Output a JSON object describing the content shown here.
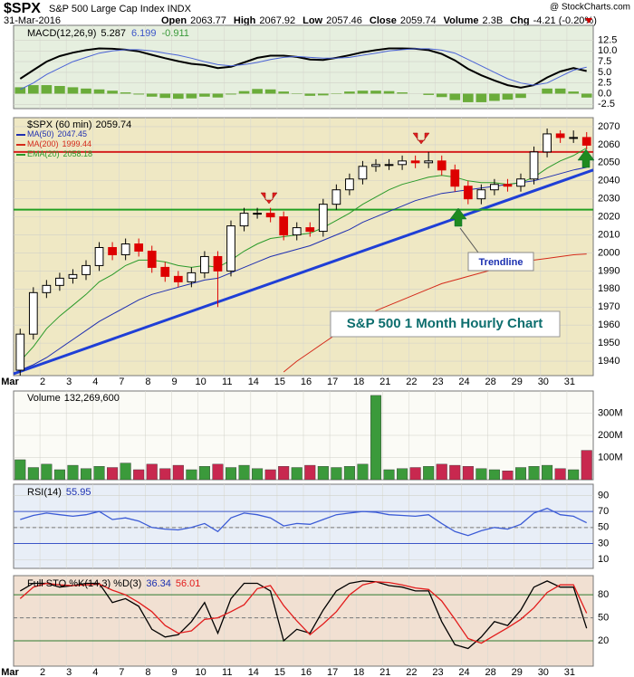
{
  "header": {
    "title": "$SPX",
    "subtitle": "S&P 500 Large Cap Index INDX",
    "credit": "@ StockCharts.com",
    "date": "31-Mar-2016",
    "quote": [
      {
        "label": "Open",
        "value": "2063.77"
      },
      {
        "label": "High",
        "value": "2067.92"
      },
      {
        "label": "Low",
        "value": "2057.46"
      },
      {
        "label": "Close",
        "value": "2059.74"
      },
      {
        "label": "Volume",
        "value": "2.3B"
      },
      {
        "label": "Chg",
        "value": "-4.21 (-0.20%)"
      }
    ]
  },
  "chart_data": [
    {
      "type": "macd",
      "name": "MACD(12,26,9)",
      "ylim": [
        -3.5,
        16
      ],
      "yticks": [
        {
          "value": 12.5,
          "label": "12.5"
        },
        {
          "value": 10,
          "label": "10.0"
        },
        {
          "value": 7.5,
          "label": "7.5"
        },
        {
          "value": 5,
          "label": "5.0"
        },
        {
          "value": 2.5,
          "label": "2.5"
        },
        {
          "value": 0,
          "label": "0.0"
        },
        {
          "value": -2.5,
          "label": "-2.5"
        }
      ],
      "series": [
        {
          "name": "MACD",
          "style": "line",
          "color": "#000000",
          "values": [
            3.5,
            5.5,
            7.5,
            8.8,
            9.6,
            10.2,
            10.6,
            10.5,
            10.3,
            9.9,
            9.1,
            8.3,
            7.6,
            7,
            6.7,
            6,
            6.3,
            7.3,
            8.4,
            8.9,
            8.9,
            8.6,
            8,
            7.9,
            8.4,
            9,
            9.7,
            10.2,
            10.6,
            10.6,
            10.5,
            10.2,
            9.3,
            7.8,
            5.8,
            4.3,
            3.1,
            2,
            1.4,
            2,
            3.8,
            5.2,
            6,
            5.287
          ]
        },
        {
          "name": "Signal",
          "style": "line",
          "color": "#4a63d6",
          "values": [
            1,
            2.5,
            4.5,
            6,
            7.5,
            8.5,
            9.5,
            10,
            10.3,
            10.3,
            10,
            9.5,
            9,
            8.3,
            7.5,
            6.8,
            6.5,
            6.8,
            7.3,
            8,
            8.5,
            8.7,
            8.5,
            8.3,
            8.3,
            8.5,
            9,
            9.5,
            10,
            10.3,
            10.5,
            10.5,
            10.2,
            9.5,
            8,
            6.5,
            5,
            3.5,
            2.5,
            2,
            2.5,
            4,
            5.5,
            6.199
          ]
        },
        {
          "name": "Histogram",
          "style": "histogram",
          "color": "#6aac3a",
          "values": [
            1.5,
            2,
            2,
            1.8,
            1.5,
            1.2,
            1,
            0.7,
            0.3,
            -0.2,
            -0.7,
            -1,
            -1.2,
            -1.1,
            -0.7,
            -0.9,
            -0.2,
            0.6,
            1.1,
            1,
            0.5,
            -0.1,
            -0.5,
            -0.4,
            0.1,
            0.5,
            0.7,
            0.7,
            0.6,
            0.3,
            0,
            -0.3,
            -0.8,
            -1.5,
            -2,
            -2,
            -1.7,
            -1.4,
            -1,
            0,
            1.2,
            1.2,
            0.5,
            -0.911
          ]
        }
      ]
    },
    {
      "type": "candlestick",
      "name": "$SPX (60 min)",
      "ylim": [
        1932,
        2075
      ],
      "yticks": [
        1940,
        1950,
        1960,
        1970,
        1980,
        1990,
        2000,
        2010,
        2020,
        2030,
        2040,
        2050,
        2060,
        2070
      ],
      "categories": [
        "Mar",
        null,
        "2",
        null,
        "3",
        null,
        "4",
        null,
        "7",
        null,
        "8",
        null,
        "9",
        null,
        "10",
        null,
        "11",
        null,
        "14",
        null,
        "15",
        null,
        "16",
        null,
        "17",
        null,
        "18",
        null,
        "21",
        null,
        "22",
        null,
        "23",
        null,
        "24",
        null,
        "28",
        null,
        "29",
        null,
        "30",
        null,
        "31",
        null
      ],
      "colors": {
        "up": "#000000",
        "down": "#dd0000"
      },
      "open": [
        1935,
        1955,
        1978,
        1982,
        1986,
        1988,
        1993,
        2003,
        1999,
        2005,
        2001,
        1992,
        1987,
        1984,
        1989,
        1998,
        1990,
        2015,
        2022,
        2022,
        2020,
        2010,
        2014,
        2012,
        2027,
        2035,
        2041,
        2048,
        2049,
        2049,
        2051,
        2050,
        2051,
        2046,
        2037,
        2030,
        2035,
        2038,
        2037,
        2041,
        2056,
        2066,
        2064,
        2064
      ],
      "high": [
        1958,
        1981,
        1985,
        1989,
        1991,
        1996,
        2006,
        2006,
        2008,
        2008,
        2004,
        1995,
        1990,
        1992,
        2001,
        2001,
        2018,
        2025,
        2025,
        2025,
        2023,
        2017,
        2017,
        2030,
        2038,
        2044,
        2051,
        2052,
        2052,
        2054,
        2054,
        2056,
        2054,
        2049,
        2040,
        2038,
        2041,
        2041,
        2044,
        2059,
        2069,
        2068,
        2067.92,
        2067
      ],
      "low": [
        1932,
        1952,
        1975,
        1979,
        1983,
        1985,
        1990,
        1996,
        1996,
        1998,
        1989,
        1984,
        1981,
        1981,
        1986,
        1970,
        1987,
        2012,
        2019,
        2017,
        2007,
        2007,
        2009,
        2009,
        2024,
        2032,
        2038,
        2045,
        2046,
        2046,
        2047,
        2047,
        2043,
        2034,
        2027,
        2027,
        2032,
        2034,
        2034,
        2038,
        2053,
        2061,
        2061,
        2057.46
      ],
      "close": [
        1955,
        1978,
        1982,
        1986,
        1988,
        1993,
        2003,
        1999,
        2005,
        2001,
        1992,
        1987,
        1984,
        1989,
        1998,
        1990,
        2015,
        2022,
        2022,
        2020,
        2010,
        2014,
        2012,
        2027,
        2035,
        2041,
        2048,
        2049,
        2049,
        2051,
        2050,
        2051,
        2046,
        2037,
        2030,
        2035,
        2038,
        2037,
        2041,
        2056,
        2066,
        2064,
        2064,
        2059.74
      ],
      "series": [
        {
          "name": "MA(50)",
          "color": "#1f2fb0",
          "values": [
            1935,
            1938,
            1942,
            1947,
            1952,
            1957,
            1962,
            1966,
            1970,
            1974,
            1977,
            1979,
            1981,
            1983,
            1985,
            1986,
            1989,
            1992,
            1995,
            1998,
            2000,
            2002,
            2004,
            2007,
            2010,
            2013,
            2017,
            2020,
            2023,
            2026,
            2029,
            2031,
            2033,
            2034,
            2035,
            2036,
            2037,
            2038,
            2039,
            2040,
            2042,
            2044,
            2046,
            2047.45
          ]
        },
        {
          "name": "MA(200)",
          "color": "#d42a1a",
          "values": [
            null,
            null,
            null,
            null,
            null,
            null,
            null,
            null,
            null,
            null,
            null,
            null,
            null,
            null,
            null,
            null,
            null,
            null,
            null,
            null,
            1934,
            1940,
            1945,
            1950,
            1955,
            1960,
            1964,
            1968,
            1971,
            1974,
            1977,
            1980,
            1983,
            1985,
            1987,
            1989,
            1991,
            1993,
            1995,
            1996,
            1997,
            1998,
            1999,
            1999.44
          ]
        },
        {
          "name": "EMA(20)",
          "color": "#2a9a2a",
          "values": [
            1940,
            1948,
            1958,
            1965,
            1971,
            1977,
            1984,
            1988,
            1993,
            1996,
            1996,
            1995,
            1993,
            1992,
            1993,
            1992,
            1996,
            2001,
            2005,
            2008,
            2009,
            2010,
            2011,
            2014,
            2018,
            2022,
            2027,
            2031,
            2035,
            2038,
            2040,
            2042,
            2043,
            2042,
            2040,
            2039,
            2039,
            2038,
            2039,
            2042,
            2047,
            2051,
            2054,
            2058.18
          ]
        }
      ],
      "hlines": [
        {
          "value": 2056,
          "color": "#d42020"
        },
        {
          "value": 2024,
          "color": "#22a022"
        }
      ],
      "trendline": {
        "values": [
          1933,
          2046
        ],
        "color": "#1f3fd6"
      },
      "notes": [
        "S&P 500 1 Month Hourly Chart",
        "Trendline"
      ]
    },
    {
      "type": "bar",
      "name": "Volume",
      "last_label": "132,269,600",
      "ylim": [
        0,
        400000000
      ],
      "yticks": [
        {
          "value": 100000000,
          "label": "100M"
        },
        {
          "value": 200000000,
          "label": "200M"
        },
        {
          "value": 300000000,
          "label": "300M"
        }
      ],
      "colors": {
        "up": "#3b9a3b",
        "down": "#c8284f"
      },
      "values": [
        90000000,
        55000000,
        70000000,
        45000000,
        65000000,
        50000000,
        60000000,
        55000000,
        75000000,
        45000000,
        70000000,
        50000000,
        65000000,
        45000000,
        60000000,
        70000000,
        55000000,
        65000000,
        50000000,
        45000000,
        60000000,
        55000000,
        65000000,
        60000000,
        55000000,
        60000000,
        70000000,
        380000000,
        45000000,
        50000000,
        55000000,
        60000000,
        70000000,
        65000000,
        60000000,
        50000000,
        45000000,
        40000000,
        55000000,
        60000000,
        65000000,
        50000000,
        45000000,
        132269600
      ]
    },
    {
      "type": "line",
      "name": "RSI(14)",
      "ylim": [
        -1,
        104
      ],
      "yticks": [
        10,
        30,
        50,
        70,
        90
      ],
      "levels": [
        30,
        70
      ],
      "midline": 50,
      "level_color": "#3b55c8",
      "series": [
        {
          "name": "RSI",
          "color": "#3b5bd6",
          "values": [
            60,
            65,
            68,
            66,
            64,
            66,
            70,
            60,
            62,
            58,
            50,
            48,
            47,
            50,
            55,
            45,
            62,
            68,
            66,
            62,
            52,
            55,
            54,
            60,
            66,
            68,
            70,
            69,
            66,
            65,
            64,
            66,
            55,
            45,
            40,
            46,
            50,
            48,
            54,
            68,
            74,
            66,
            64,
            55.95
          ]
        }
      ]
    },
    {
      "type": "line",
      "name": "Full STO %K(14,3) %D(3)",
      "ylim": [
        -13,
        105
      ],
      "yticks": [
        20,
        50,
        80
      ],
      "levels": [
        20,
        80
      ],
      "midline": 50,
      "level_color": "#2f7a2f",
      "categories": [
        "Mar",
        null,
        "2",
        null,
        "3",
        null,
        "4",
        null,
        "7",
        null,
        "8",
        null,
        "9",
        null,
        "10",
        null,
        "11",
        null,
        "14",
        null,
        "15",
        null,
        "16",
        null,
        "17",
        null,
        "18",
        null,
        "21",
        null,
        "22",
        null,
        "23",
        null,
        "24",
        null,
        "28",
        null,
        "29",
        null,
        "30",
        null,
        "31",
        null
      ],
      "series": [
        {
          "name": "%K",
          "color": "#000000",
          "values": [
            85,
            95,
            95,
            90,
            92,
            95,
            95,
            70,
            75,
            65,
            35,
            25,
            28,
            45,
            70,
            30,
            75,
            95,
            95,
            85,
            20,
            35,
            30,
            60,
            85,
            95,
            98,
            97,
            92,
            90,
            85,
            85,
            45,
            15,
            10,
            25,
            45,
            40,
            60,
            90,
            98,
            90,
            90,
            36.34
          ]
        },
        {
          "name": "%D",
          "color": "#e21c1c",
          "values": [
            75,
            90,
            95,
            93,
            92,
            93,
            94,
            86,
            80,
            70,
            58,
            40,
            30,
            33,
            48,
            50,
            58,
            67,
            88,
            92,
            66,
            46,
            28,
            42,
            58,
            80,
            93,
            97,
            96,
            93,
            89,
            87,
            72,
            48,
            23,
            17,
            27,
            37,
            48,
            63,
            83,
            93,
            93,
            56.01
          ]
        }
      ]
    }
  ]
}
